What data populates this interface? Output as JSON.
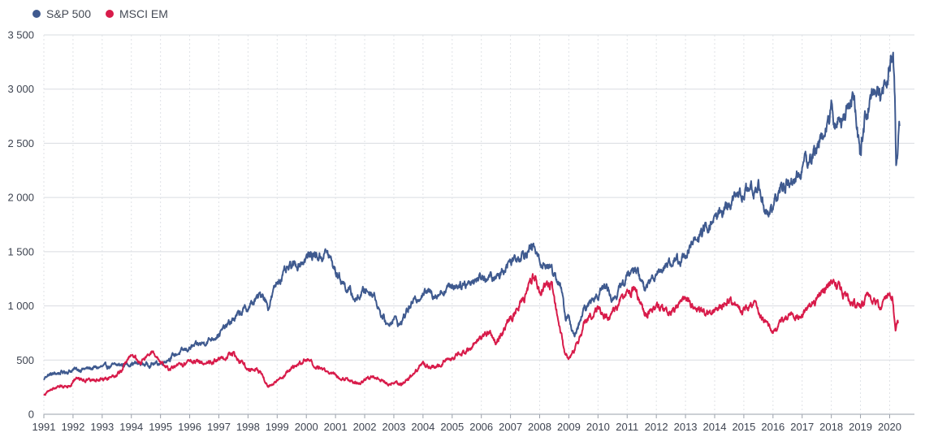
{
  "chart_data": {
    "type": "line",
    "legend_position": "top-left",
    "grid": true,
    "xlabel": "",
    "ylabel": "",
    "xlim": [
      1991.0,
      2020.85
    ],
    "ylim": [
      0,
      3500
    ],
    "x_ticks": [
      "1991",
      "1992",
      "1993",
      "1994",
      "1995",
      "1996",
      "1997",
      "1998",
      "1999",
      "2000",
      "2001",
      "2002",
      "2003",
      "2004",
      "2005",
      "2006",
      "2007",
      "2008",
      "2009",
      "2010",
      "2011",
      "2012",
      "2013",
      "2014",
      "2015",
      "2016",
      "2017",
      "2018",
      "2019",
      "2020"
    ],
    "y_ticks": [
      {
        "value": 0,
        "label": "0"
      },
      {
        "value": 500,
        "label": "500"
      },
      {
        "value": 1000,
        "label": "1 000"
      },
      {
        "value": 1500,
        "label": "1 500"
      },
      {
        "value": 2000,
        "label": "2 000"
      },
      {
        "value": 2500,
        "label": "2 500"
      },
      {
        "value": 3000,
        "label": "3 000"
      },
      {
        "value": 3500,
        "label": "3 500"
      }
    ],
    "series": [
      {
        "name": "S&P 500",
        "color": "#3f5a8f",
        "points": [
          [
            1991.0,
            320
          ],
          [
            1991.1,
            360
          ],
          [
            1991.5,
            380
          ],
          [
            1991.9,
            400
          ],
          [
            1992.0,
            410
          ],
          [
            1992.5,
            420
          ],
          [
            1993.0,
            435
          ],
          [
            1993.5,
            450
          ],
          [
            1994.0,
            470
          ],
          [
            1994.5,
            460
          ],
          [
            1995.0,
            470
          ],
          [
            1995.5,
            550
          ],
          [
            1996.0,
            610
          ],
          [
            1996.5,
            660
          ],
          [
            1997.0,
            740
          ],
          [
            1997.4,
            850
          ],
          [
            1997.8,
            950
          ],
          [
            1998.0,
            980
          ],
          [
            1998.5,
            1120
          ],
          [
            1998.7,
            990
          ],
          [
            1999.0,
            1230
          ],
          [
            1999.5,
            1360
          ],
          [
            1999.8,
            1400
          ],
          [
            2000.2,
            1480
          ],
          [
            2000.5,
            1450
          ],
          [
            2000.7,
            1500
          ],
          [
            2001.0,
            1320
          ],
          [
            2001.3,
            1200
          ],
          [
            2001.7,
            1050
          ],
          [
            2002.0,
            1150
          ],
          [
            2002.3,
            1120
          ],
          [
            2002.6,
            900
          ],
          [
            2002.8,
            820
          ],
          [
            2003.0,
            900
          ],
          [
            2003.2,
            820
          ],
          [
            2003.5,
            980
          ],
          [
            2004.0,
            1130
          ],
          [
            2004.5,
            1110
          ],
          [
            2005.0,
            1190
          ],
          [
            2005.5,
            1210
          ],
          [
            2006.0,
            1270
          ],
          [
            2006.5,
            1250
          ],
          [
            2007.0,
            1420
          ],
          [
            2007.5,
            1500
          ],
          [
            2007.8,
            1540
          ],
          [
            2008.0,
            1410
          ],
          [
            2008.4,
            1350
          ],
          [
            2008.7,
            1200
          ],
          [
            2008.9,
            880
          ],
          [
            2009.0,
            900
          ],
          [
            2009.2,
            700
          ],
          [
            2009.5,
            950
          ],
          [
            2010.0,
            1120
          ],
          [
            2010.3,
            1190
          ],
          [
            2010.5,
            1050
          ],
          [
            2010.8,
            1180
          ],
          [
            2011.0,
            1280
          ],
          [
            2011.3,
            1350
          ],
          [
            2011.6,
            1150
          ],
          [
            2012.0,
            1320
          ],
          [
            2012.4,
            1390
          ],
          [
            2012.8,
            1420
          ],
          [
            2013.0,
            1480
          ],
          [
            2013.5,
            1650
          ],
          [
            2014.0,
            1800
          ],
          [
            2014.5,
            1950
          ],
          [
            2014.8,
            2000
          ],
          [
            2015.0,
            2050
          ],
          [
            2015.5,
            2100
          ],
          [
            2015.7,
            1900
          ],
          [
            2016.0,
            1880
          ],
          [
            2016.2,
            2050
          ],
          [
            2016.5,
            2150
          ],
          [
            2016.9,
            2200
          ],
          [
            2017.0,
            2280
          ],
          [
            2017.5,
            2450
          ],
          [
            2018.0,
            2800
          ],
          [
            2018.1,
            2650
          ],
          [
            2018.5,
            2780
          ],
          [
            2018.75,
            2920
          ],
          [
            2018.98,
            2400
          ],
          [
            2019.2,
            2800
          ],
          [
            2019.5,
            2990
          ],
          [
            2019.7,
            2950
          ],
          [
            2020.0,
            3230
          ],
          [
            2020.12,
            3380
          ],
          [
            2020.18,
            2900
          ],
          [
            2020.22,
            2240
          ],
          [
            2020.3,
            2550
          ],
          [
            2020.34,
            2660
          ]
        ]
      },
      {
        "name": "MSCI EM",
        "color": "#d81b4a",
        "points": [
          [
            1991.0,
            180
          ],
          [
            1991.3,
            240
          ],
          [
            1991.9,
            270
          ],
          [
            1992.1,
            340
          ],
          [
            1992.5,
            310
          ],
          [
            1993.0,
            320
          ],
          [
            1993.6,
            380
          ],
          [
            1994.0,
            560
          ],
          [
            1994.3,
            470
          ],
          [
            1994.7,
            580
          ],
          [
            1995.0,
            460
          ],
          [
            1995.3,
            420
          ],
          [
            1995.8,
            460
          ],
          [
            1996.0,
            500
          ],
          [
            1996.5,
            480
          ],
          [
            1997.0,
            500
          ],
          [
            1997.5,
            560
          ],
          [
            1997.8,
            470
          ],
          [
            1998.0,
            420
          ],
          [
            1998.3,
            430
          ],
          [
            1998.7,
            260
          ],
          [
            1999.0,
            300
          ],
          [
            1999.5,
            420
          ],
          [
            2000.0,
            510
          ],
          [
            2000.3,
            430
          ],
          [
            2000.7,
            400
          ],
          [
            2001.0,
            360
          ],
          [
            2001.5,
            320
          ],
          [
            2001.8,
            270
          ],
          [
            2002.0,
            320
          ],
          [
            2002.4,
            350
          ],
          [
            2002.8,
            280
          ],
          [
            2003.0,
            300
          ],
          [
            2003.3,
            280
          ],
          [
            2003.7,
            380
          ],
          [
            2004.0,
            470
          ],
          [
            2004.4,
            420
          ],
          [
            2004.8,
            510
          ],
          [
            2005.0,
            520
          ],
          [
            2005.5,
            590
          ],
          [
            2006.0,
            700
          ],
          [
            2006.3,
            780
          ],
          [
            2006.5,
            650
          ],
          [
            2006.9,
            840
          ],
          [
            2007.0,
            880
          ],
          [
            2007.5,
            1100
          ],
          [
            2007.8,
            1300
          ],
          [
            2008.0,
            1150
          ],
          [
            2008.4,
            1200
          ],
          [
            2008.7,
            800
          ],
          [
            2008.85,
            560
          ],
          [
            2009.0,
            520
          ],
          [
            2009.3,
            650
          ],
          [
            2009.6,
            880
          ],
          [
            2010.0,
            980
          ],
          [
            2010.4,
            880
          ],
          [
            2010.8,
            1080
          ],
          [
            2011.0,
            1130
          ],
          [
            2011.3,
            1150
          ],
          [
            2011.6,
            900
          ],
          [
            2012.0,
            1010
          ],
          [
            2012.5,
            920
          ],
          [
            2013.0,
            1070
          ],
          [
            2013.5,
            940
          ],
          [
            2014.0,
            960
          ],
          [
            2014.5,
            1060
          ],
          [
            2014.7,
            1010
          ],
          [
            2015.0,
            960
          ],
          [
            2015.4,
            1040
          ],
          [
            2015.7,
            860
          ],
          [
            2016.0,
            780
          ],
          [
            2016.3,
            860
          ],
          [
            2016.6,
            910
          ],
          [
            2017.0,
            920
          ],
          [
            2017.5,
            1060
          ],
          [
            2018.0,
            1200
          ],
          [
            2018.1,
            1230
          ],
          [
            2018.5,
            1080
          ],
          [
            2018.9,
            980
          ],
          [
            2019.2,
            1060
          ],
          [
            2019.5,
            1060
          ],
          [
            2019.7,
            990
          ],
          [
            2020.0,
            1110
          ],
          [
            2020.1,
            1080
          ],
          [
            2020.2,
            790
          ],
          [
            2020.3,
            850
          ]
        ]
      }
    ]
  }
}
